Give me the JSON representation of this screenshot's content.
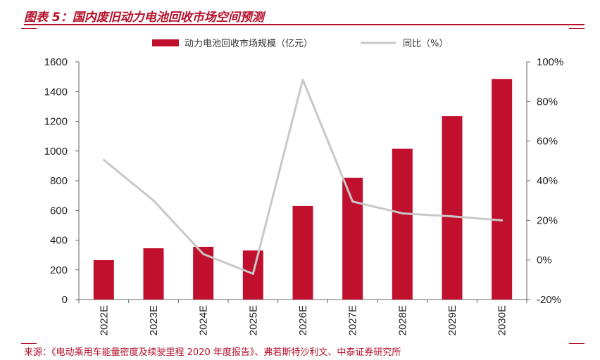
{
  "title": "图表 5：国内废旧动力电池回收市场空间预测",
  "source": "来源：《电动乘用车能量密度及续驶里程 2020 年度报告》、弗若斯特沙利文、中泰证券研究所",
  "colors": {
    "bar": "#c0102e",
    "line": "#c8c8c8",
    "accent": "#b5102a"
  },
  "chart_data": {
    "type": "bar",
    "categories": [
      "2022E",
      "2023E",
      "2024E",
      "2025E",
      "2026E",
      "2027E",
      "2028E",
      "2029E",
      "2030E"
    ],
    "series": [
      {
        "name": "动力电池回收市场规模（亿元）",
        "type": "bar",
        "axis": "left",
        "values": [
          265,
          345,
          355,
          330,
          630,
          820,
          1015,
          1235,
          1485
        ]
      },
      {
        "name": "同比（%）",
        "type": "line",
        "axis": "right",
        "values": [
          50.5,
          30,
          3,
          -7,
          91,
          29.5,
          23.5,
          22,
          20
        ]
      }
    ],
    "ylim_left": [
      0,
      1600
    ],
    "yticks_left": [
      "0",
      "200",
      "400",
      "600",
      "800",
      "1000",
      "1200",
      "1400",
      "1600"
    ],
    "ylim_right": [
      -20,
      100
    ],
    "yticks_right": [
      "-20%",
      "0%",
      "20%",
      "40%",
      "60%",
      "80%",
      "100%"
    ],
    "legend_position": "top-center",
    "grid": false
  }
}
